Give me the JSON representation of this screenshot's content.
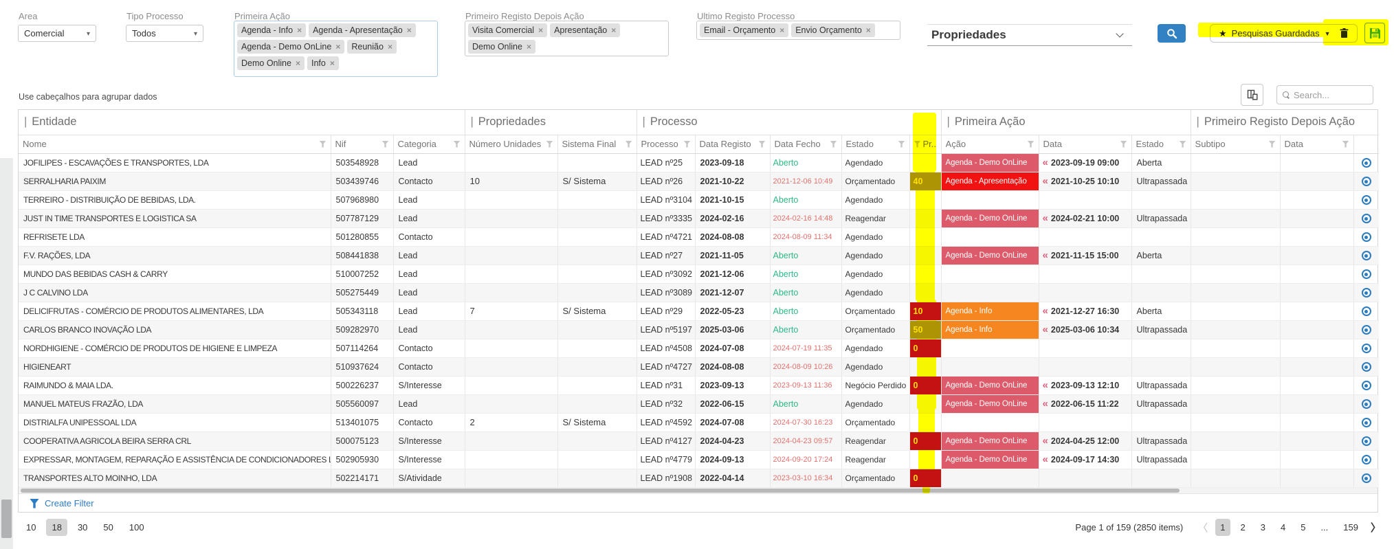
{
  "filters": {
    "area": {
      "label": "Area",
      "value": "Comercial"
    },
    "tipo_processo": {
      "label": "Tipo Processo",
      "value": "Todos"
    },
    "primeira_acao": {
      "label": "Primeira Ação",
      "tags": [
        "Agenda - Info",
        "Agenda - Apresentação",
        "Agenda - Demo OnLine",
        "Reunião",
        "Demo Online",
        "Info"
      ]
    },
    "primeiro_registo_depois_acao": {
      "label": "Primeiro Registo Depois Ação",
      "tags": [
        "Visita Comercial",
        "Apresentação",
        "Demo Online"
      ]
    },
    "ultimo_registo_processo": {
      "label": "Ultimo Registo Processo",
      "tags": [
        "Email - Orçamento",
        "Envio Orçamento"
      ]
    },
    "view_selector": {
      "value": "Propriedades"
    },
    "saved_searches_label": "Pesquisas Guardadas"
  },
  "grid": {
    "hint": "Use cabeçalhos para agrupar dados",
    "search_placeholder": "Search...",
    "bands": [
      "Entidade",
      "Propriedades",
      "Processo",
      "Primeira Ação",
      "Primeiro Registo Depois Ação"
    ],
    "columns": [
      "Nome",
      "Nif",
      "Categoria",
      "Número Unidades",
      "Sistema Final",
      "Processo",
      "Data Registo",
      "Data Fecho",
      "Estado",
      "Pr...",
      "Ação",
      "Data",
      "Estado",
      "Subtipo",
      "Data"
    ],
    "rows": [
      {
        "nome": "JOFILIPES - ESCAVAÇÕES E TRANSPORTES, LDA",
        "nif": "503548928",
        "categoria": "Lead",
        "num_unidades": "",
        "sistema_final": "",
        "processo": "LEAD nº25",
        "data_registo": "2023-09-18",
        "data_fecho": "Aberto",
        "estado": "Agendado",
        "pr": "",
        "pr_level": "",
        "acao": "Agenda - Demo OnLine",
        "acao_level": "rose",
        "acao_data": "2023-09-19 09:00",
        "acao_estado": "Aberta",
        "subtipo": "",
        "reg_data": ""
      },
      {
        "nome": "SERRALHARIA PAIXIM",
        "nif": "503439746",
        "categoria": "Contacto",
        "num_unidades": "10",
        "sistema_final": "S/ Sistema",
        "processo": "LEAD nº26",
        "data_registo": "2021-10-22",
        "data_fecho": "2021-12-06 10:49",
        "estado": "Orçamentado",
        "pr": "40",
        "pr_level": "olive",
        "acao": "Agenda - Apresentação",
        "acao_level": "red",
        "acao_data": "2021-10-25 10:10",
        "acao_estado": "Ultrapassada",
        "subtipo": "",
        "reg_data": ""
      },
      {
        "nome": "TERREIRO - DISTRIBUIÇÃO DE BEBIDAS, LDA.",
        "nif": "507968980",
        "categoria": "Lead",
        "num_unidades": "",
        "sistema_final": "",
        "processo": "LEAD nº3104",
        "data_registo": "2021-10-15",
        "data_fecho": "Aberto",
        "estado": "Agendado",
        "pr": "",
        "pr_level": "",
        "acao": "",
        "acao_level": "",
        "acao_data": "",
        "acao_estado": "",
        "subtipo": "",
        "reg_data": ""
      },
      {
        "nome": "JUST IN TIME TRANSPORTES E LOGISTICA SA",
        "nif": "507787129",
        "categoria": "Lead",
        "num_unidades": "",
        "sistema_final": "",
        "processo": "LEAD nº3335",
        "data_registo": "2024-02-16",
        "data_fecho": "2024-02-16 14:48",
        "estado": "Reagendar",
        "pr": "",
        "pr_level": "",
        "acao": "Agenda - Demo OnLine",
        "acao_level": "rose",
        "acao_data": "2024-02-21 10:00",
        "acao_estado": "Ultrapassada",
        "subtipo": "",
        "reg_data": ""
      },
      {
        "nome": "REFRISETE LDA",
        "nif": "501280855",
        "categoria": "Contacto",
        "num_unidades": "",
        "sistema_final": "",
        "processo": "LEAD nº4721",
        "data_registo": "2024-08-08",
        "data_fecho": "2024-08-09 11:34",
        "estado": "Agendado",
        "pr": "",
        "pr_level": "",
        "acao": "",
        "acao_level": "",
        "acao_data": "",
        "acao_estado": "",
        "subtipo": "",
        "reg_data": ""
      },
      {
        "nome": "F.V. RAÇÕES, LDA",
        "nif": "508441838",
        "categoria": "Lead",
        "num_unidades": "",
        "sistema_final": "",
        "processo": "LEAD nº27",
        "data_registo": "2021-11-05",
        "data_fecho": "Aberto",
        "estado": "Agendado",
        "pr": "",
        "pr_level": "",
        "acao": "Agenda - Demo OnLine",
        "acao_level": "rose",
        "acao_data": "2021-11-15 15:00",
        "acao_estado": "Aberta",
        "subtipo": "",
        "reg_data": ""
      },
      {
        "nome": "MUNDO DAS BEBIDAS CASH & CARRY",
        "nif": "510007252",
        "categoria": "Lead",
        "num_unidades": "",
        "sistema_final": "",
        "processo": "LEAD nº3092",
        "data_registo": "2021-12-06",
        "data_fecho": "Aberto",
        "estado": "Agendado",
        "pr": "",
        "pr_level": "",
        "acao": "",
        "acao_level": "",
        "acao_data": "",
        "acao_estado": "",
        "subtipo": "",
        "reg_data": ""
      },
      {
        "nome": "J C CALVINO LDA",
        "nif": "505275449",
        "categoria": "Lead",
        "num_unidades": "",
        "sistema_final": "",
        "processo": "LEAD nº3089",
        "data_registo": "2021-12-07",
        "data_fecho": "Aberto",
        "estado": "Agendado",
        "pr": "",
        "pr_level": "",
        "acao": "",
        "acao_level": "",
        "acao_data": "",
        "acao_estado": "",
        "subtipo": "",
        "reg_data": ""
      },
      {
        "nome": "DELICIFRUTAS - COMÉRCIO DE PRODUTOS ALIMENTARES, LDA",
        "nif": "505343118",
        "categoria": "Lead",
        "num_unidades": "7",
        "sistema_final": "S/ Sistema",
        "processo": "LEAD nº29",
        "data_registo": "2022-05-23",
        "data_fecho": "Aberto",
        "estado": "Orçamentado",
        "pr": "10",
        "pr_level": "red",
        "acao": "Agenda - Info",
        "acao_level": "orange",
        "acao_data": "2021-12-27 16:30",
        "acao_estado": "Aberta",
        "subtipo": "",
        "reg_data": ""
      },
      {
        "nome": "CARLOS BRANCO INOVAÇÃO LDA",
        "nif": "509282970",
        "categoria": "Lead",
        "num_unidades": "",
        "sistema_final": "",
        "processo": "LEAD nº5197",
        "data_registo": "2025-03-06",
        "data_fecho": "Aberto",
        "estado": "Orçamentado",
        "pr": "50",
        "pr_level": "olive",
        "acao": "Agenda - Info",
        "acao_level": "orange",
        "acao_data": "2025-03-06 10:34",
        "acao_estado": "Ultrapassada",
        "subtipo": "",
        "reg_data": ""
      },
      {
        "nome": "NORDHIGIENE - COMÉRCIO DE PRODUTOS DE HIGIENE E LIMPEZA",
        "nif": "507114264",
        "categoria": "Contacto",
        "num_unidades": "",
        "sistema_final": "",
        "processo": "LEAD nº4508",
        "data_registo": "2024-07-08",
        "data_fecho": "2024-07-19 11:35",
        "estado": "Agendado",
        "pr": "0",
        "pr_level": "red",
        "acao": "",
        "acao_level": "",
        "acao_data": "",
        "acao_estado": "",
        "subtipo": "",
        "reg_data": ""
      },
      {
        "nome": "HIGIENEART",
        "nif": "510937624",
        "categoria": "Contacto",
        "num_unidades": "",
        "sistema_final": "",
        "processo": "LEAD nº4727",
        "data_registo": "2024-08-08",
        "data_fecho": "2024-08-09 10:26",
        "estado": "Agendado",
        "pr": "",
        "pr_level": "",
        "acao": "",
        "acao_level": "",
        "acao_data": "",
        "acao_estado": "",
        "subtipo": "",
        "reg_data": ""
      },
      {
        "nome": "RAIMUNDO & MAIA LDA.",
        "nif": "500226237",
        "categoria": "S/Interesse",
        "num_unidades": "",
        "sistema_final": "",
        "processo": "LEAD nº31",
        "data_registo": "2023-09-13",
        "data_fecho": "2023-09-13 11:36",
        "estado": "Negócio Perdido",
        "pr": "0",
        "pr_level": "red",
        "acao": "Agenda - Demo OnLine",
        "acao_level": "rose",
        "acao_data": "2023-09-13 12:10",
        "acao_estado": "Ultrapassada",
        "subtipo": "",
        "reg_data": ""
      },
      {
        "nome": "MANUEL MATEUS FRAZÃO, LDA",
        "nif": "505560097",
        "categoria": "Lead",
        "num_unidades": "",
        "sistema_final": "",
        "processo": "LEAD nº32",
        "data_registo": "2022-06-15",
        "data_fecho": "Aberto",
        "estado": "Agendado",
        "pr": "",
        "pr_level": "",
        "acao": "Agenda - Demo OnLine",
        "acao_level": "rose",
        "acao_data": "2022-06-15 11:22",
        "acao_estado": "Ultrapassada",
        "subtipo": "",
        "reg_data": ""
      },
      {
        "nome": "DISTRIALFA UNIPESSOAL LDA",
        "nif": "513401075",
        "categoria": "Contacto",
        "num_unidades": "2",
        "sistema_final": "S/ Sistema",
        "processo": "LEAD nº4592",
        "data_registo": "2024-07-08",
        "data_fecho": "2024-07-30 16:23",
        "estado": "Orçamentado",
        "pr": "",
        "pr_level": "",
        "acao": "",
        "acao_level": "",
        "acao_data": "",
        "acao_estado": "",
        "subtipo": "",
        "reg_data": ""
      },
      {
        "nome": "COOPERATIVA AGRICOLA BEIRA SERRA CRL",
        "nif": "500075123",
        "categoria": "S/Interesse",
        "num_unidades": "",
        "sistema_final": "",
        "processo": "LEAD nº4127",
        "data_registo": "2024-04-23",
        "data_fecho": "2024-04-23 09:57",
        "estado": "Reagendar",
        "pr": "0",
        "pr_level": "red",
        "acao": "Agenda - Demo OnLine",
        "acao_level": "rose",
        "acao_data": "2024-04-25 12:00",
        "acao_estado": "Ultrapassada",
        "subtipo": "",
        "reg_data": ""
      },
      {
        "nome": "EXPRESSAR, MONTAGEM, REPARAÇÃO E ASSISTÊNCIA DE CONDICIONADORES LDA",
        "nif": "502905930",
        "categoria": "S/Interesse",
        "num_unidades": "",
        "sistema_final": "",
        "processo": "LEAD nº4779",
        "data_registo": "2024-09-13",
        "data_fecho": "2024-09-20 17:24",
        "estado": "Reagendar",
        "pr": "",
        "pr_level": "",
        "acao": "Agenda - Demo OnLine",
        "acao_level": "rose",
        "acao_data": "2024-09-17 14:30",
        "acao_estado": "Ultrapassada",
        "subtipo": "",
        "reg_data": ""
      },
      {
        "nome": "TRANSPORTES ALTO MOINHO, LDA",
        "nif": "502214171",
        "categoria": "S/Atividade",
        "num_unidades": "",
        "sistema_final": "",
        "processo": "LEAD nº1908",
        "data_registo": "2022-04-14",
        "data_fecho": "2023-03-10 16:34",
        "estado": "Orçamentado",
        "pr": "0",
        "pr_level": "red",
        "acao": "",
        "acao_level": "",
        "acao_data": "",
        "acao_estado": "",
        "subtipo": "",
        "reg_data": ""
      }
    ]
  },
  "footer": {
    "create_filter": "Create Filter",
    "page_sizes": [
      "10",
      "18",
      "30",
      "50",
      "100"
    ],
    "selected_page_size": "18",
    "page_info": "Page 1 of 159 (2850 items)",
    "pages": [
      "1",
      "2",
      "3",
      "4",
      "5",
      "...",
      "159"
    ],
    "current_page": "1"
  },
  "colors": {
    "accent_blue": "#3282c3",
    "marker_yellow": "#ffff00",
    "chip_rose": "#dc5a69",
    "chip_red": "#f31212",
    "chip_orange": "#f6861f",
    "pr_olive": "#ad9404",
    "pr_red": "#c41111",
    "open_green": "#2eb986",
    "overdue_red": "#e2716d",
    "floppy_green": "#3fae29"
  }
}
